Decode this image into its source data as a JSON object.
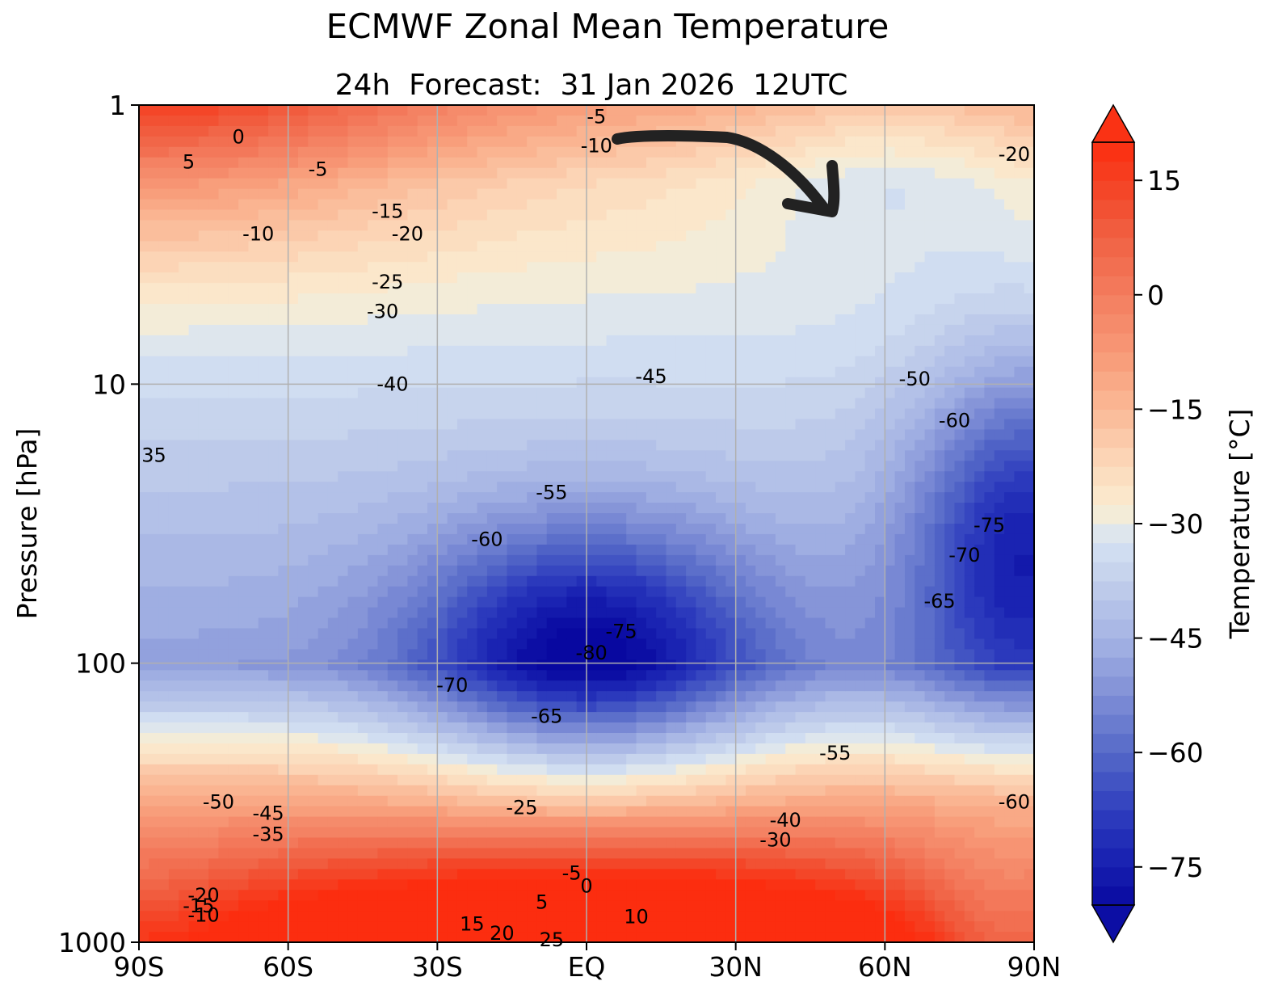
{
  "chart_data": {
    "type": "heatmap",
    "title": "ECMWF Zonal Mean Temperature",
    "subtitle": "24h  Forecast:  31 Jan 2026  12UTC",
    "xlabel": "",
    "ylabel": "Pressure [hPa]",
    "x_range": [
      -90,
      90
    ],
    "y_range": [
      1000,
      1
    ],
    "y_scale": "log",
    "x_ticks": [
      {
        "value": -90,
        "label": "90S"
      },
      {
        "value": -60,
        "label": "60S"
      },
      {
        "value": -30,
        "label": "30S"
      },
      {
        "value": 0,
        "label": "EQ"
      },
      {
        "value": 30,
        "label": "30N"
      },
      {
        "value": 60,
        "label": "60N"
      },
      {
        "value": 90,
        "label": "90N"
      }
    ],
    "y_ticks": [
      {
        "value": 1,
        "label": "1"
      },
      {
        "value": 10,
        "label": "10"
      },
      {
        "value": 100,
        "label": "100"
      },
      {
        "value": 1000,
        "label": "1000"
      }
    ],
    "grid": true,
    "colorbar": {
      "label": "Temperature [°C]",
      "range": [
        -80,
        20
      ],
      "ticks": [
        {
          "value": 15,
          "label": "15"
        },
        {
          "value": 0,
          "label": "0"
        },
        {
          "value": -15,
          "label": "−15"
        },
        {
          "value": -30,
          "label": "−30"
        },
        {
          "value": -45,
          "label": "−45"
        },
        {
          "value": -60,
          "label": "−60"
        },
        {
          "value": -75,
          "label": "−75"
        }
      ],
      "extend": "both"
    },
    "contour_labels": [
      {
        "lat": -80,
        "p": 1.6,
        "label": "5"
      },
      {
        "lat": -70,
        "p": 1.3,
        "label": "0"
      },
      {
        "lat": -54,
        "p": 1.7,
        "label": "-5"
      },
      {
        "lat": -40,
        "p": 2.4,
        "label": "-15"
      },
      {
        "lat": -66,
        "p": 2.9,
        "label": "-10"
      },
      {
        "lat": -36,
        "p": 2.9,
        "label": "-20"
      },
      {
        "lat": -40,
        "p": 4.3,
        "label": "-25"
      },
      {
        "lat": -41,
        "p": 5.5,
        "label": "-30"
      },
      {
        "lat": -39,
        "p": 10,
        "label": "-40"
      },
      {
        "lat": -87,
        "p": 18,
        "label": "35"
      },
      {
        "lat": 13,
        "p": 9.4,
        "label": "-45"
      },
      {
        "lat": 66,
        "p": 9.6,
        "label": "-50"
      },
      {
        "lat": 74,
        "p": 13.5,
        "label": "-60"
      },
      {
        "lat": -7,
        "p": 24.5,
        "label": "-55"
      },
      {
        "lat": -20,
        "p": 36,
        "label": "-60"
      },
      {
        "lat": 7,
        "p": 77,
        "label": "-75"
      },
      {
        "lat": 1,
        "p": 92,
        "label": "-80"
      },
      {
        "lat": -27,
        "p": 120,
        "label": "-70"
      },
      {
        "lat": -8,
        "p": 155,
        "label": "-65"
      },
      {
        "lat": 71,
        "p": 60,
        "label": "-65"
      },
      {
        "lat": 76,
        "p": 41,
        "label": "-70"
      },
      {
        "lat": 81,
        "p": 32,
        "label": "-75"
      },
      {
        "lat": 50,
        "p": 210,
        "label": "-55"
      },
      {
        "lat": 86,
        "p": 315,
        "label": "-60"
      },
      {
        "lat": -74,
        "p": 315,
        "label": "-50"
      },
      {
        "lat": -64,
        "p": 345,
        "label": "-45"
      },
      {
        "lat": -64,
        "p": 410,
        "label": "-35"
      },
      {
        "lat": -13,
        "p": 330,
        "label": "-25"
      },
      {
        "lat": 40,
        "p": 365,
        "label": "-40"
      },
      {
        "lat": 38,
        "p": 430,
        "label": "-30"
      },
      {
        "lat": -3,
        "p": 565,
        "label": "-5"
      },
      {
        "lat": 0,
        "p": 630,
        "label": "0"
      },
      {
        "lat": -9,
        "p": 720,
        "label": "5"
      },
      {
        "lat": 10,
        "p": 810,
        "label": "10"
      },
      {
        "lat": -23,
        "p": 860,
        "label": "15"
      },
      {
        "lat": -17,
        "p": 930,
        "label": "20"
      },
      {
        "lat": -7,
        "p": 980,
        "label": "25"
      },
      {
        "lat": -77,
        "p": 680,
        "label": "-20"
      },
      {
        "lat": -78,
        "p": 740,
        "label": "-15"
      },
      {
        "lat": -77,
        "p": 800,
        "label": "-10"
      },
      {
        "lat": 86,
        "p": 1.5,
        "label": "-20"
      },
      {
        "lat": 2,
        "p": 1.1,
        "label": "-5"
      },
      {
        "lat": 2,
        "p": 1.4,
        "label": "-10"
      }
    ]
  }
}
